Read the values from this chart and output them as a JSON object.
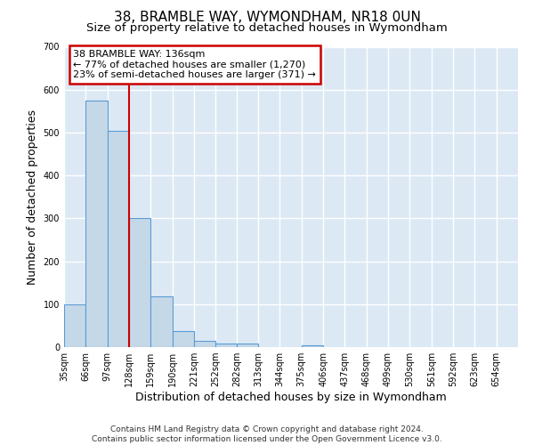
{
  "title": "38, BRAMBLE WAY, WYMONDHAM, NR18 0UN",
  "subtitle": "Size of property relative to detached houses in Wymondham",
  "xlabel": "Distribution of detached houses by size in Wymondham",
  "ylabel": "Number of detached properties",
  "footer_line1": "Contains HM Land Registry data © Crown copyright and database right 2024.",
  "footer_line2": "Contains public sector information licensed under the Open Government Licence v3.0.",
  "bin_labels": [
    "35sqm",
    "66sqm",
    "97sqm",
    "128sqm",
    "159sqm",
    "190sqm",
    "221sqm",
    "252sqm",
    "282sqm",
    "313sqm",
    "344sqm",
    "375sqm",
    "406sqm",
    "437sqm",
    "468sqm",
    "499sqm",
    "530sqm",
    "561sqm",
    "592sqm",
    "623sqm",
    "654sqm"
  ],
  "bar_values": [
    100,
    575,
    505,
    300,
    118,
    38,
    15,
    8,
    8,
    0,
    0,
    5,
    0,
    0,
    0,
    0,
    0,
    0,
    0,
    0,
    0
  ],
  "bar_color": "#c5d8e8",
  "bar_edge_color": "#5b9bd5",
  "bin_edges": [
    35,
    66,
    97,
    128,
    159,
    190,
    221,
    252,
    282,
    313,
    344,
    375,
    406,
    437,
    468,
    499,
    530,
    561,
    592,
    623,
    654
  ],
  "bin_width": 31,
  "annotation_lines": [
    "38 BRAMBLE WAY: 136sqm",
    "← 77% of detached houses are smaller (1,270)",
    "23% of semi-detached houses are larger (371) →"
  ],
  "ylim": [
    0,
    700
  ],
  "yticks": [
    0,
    100,
    200,
    300,
    400,
    500,
    600,
    700
  ],
  "vline_color": "#cc0000",
  "vline_x": 128,
  "background_color": "#ffffff",
  "plot_bg_color": "#dce9f5",
  "grid_color": "#ffffff",
  "title_fontsize": 11,
  "subtitle_fontsize": 9.5,
  "axis_label_fontsize": 9,
  "tick_fontsize": 7,
  "footer_fontsize": 6.5
}
